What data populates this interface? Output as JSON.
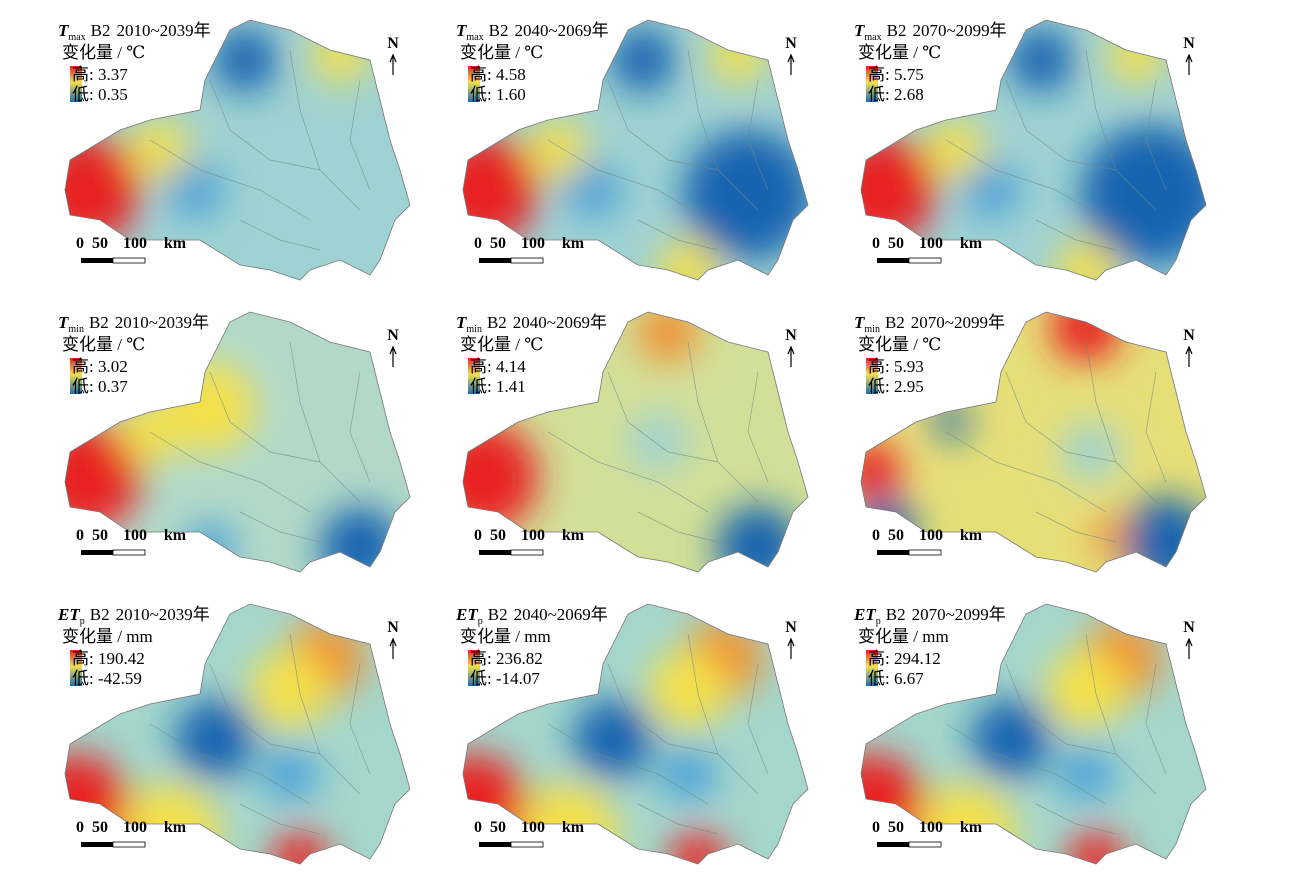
{
  "north": "N",
  "scale_labels": [
    "0",
    "50",
    "100",
    "km"
  ],
  "panels": [
    {
      "var": "T",
      "sub": "max",
      "scenario": "B2",
      "period": "2010~2039年",
      "unit": "变化量 / ℃",
      "high": "高: 3.37",
      "low": "低: 0.35"
    },
    {
      "var": "T",
      "sub": "max",
      "scenario": "B2",
      "period": "2040~2069年",
      "unit": "变化量 / ℃",
      "high": "高: 4.58",
      "low": "低: 1.60"
    },
    {
      "var": "T",
      "sub": "max",
      "scenario": "B2",
      "period": "2070~2099年",
      "unit": "变化量 / ℃",
      "high": "高: 5.75",
      "low": "低: 2.68"
    },
    {
      "var": "T",
      "sub": "min",
      "scenario": "B2",
      "period": "2010~2039年",
      "unit": "变化量 / ℃",
      "high": "高: 3.02",
      "low": "低: 0.37"
    },
    {
      "var": "T",
      "sub": "min",
      "scenario": "B2",
      "period": "2040~2069年",
      "unit": "变化量 / ℃",
      "high": "高: 4.14",
      "low": "低: 1.41"
    },
    {
      "var": "T",
      "sub": "min",
      "scenario": "B2",
      "period": "2070~2099年",
      "unit": "变化量 / ℃",
      "high": "高: 5.93",
      "low": "低: 2.95"
    },
    {
      "var": "ET",
      "sub": "p",
      "scenario": "B2",
      "period": "2010~2039年",
      "unit": "变化量 / mm",
      "high": "高: 190.42",
      "low": "低: -42.59"
    },
    {
      "var": "ET",
      "sub": "p",
      "scenario": "B2",
      "period": "2040~2069年",
      "unit": "变化量 / mm",
      "high": "高: 236.82",
      "low": "低: -14.07"
    },
    {
      "var": "ET",
      "sub": "p",
      "scenario": "B2",
      "period": "2070~2099年",
      "unit": "变化量 / mm",
      "high": "高: 294.12",
      "low": "低: 6.67"
    }
  ]
}
